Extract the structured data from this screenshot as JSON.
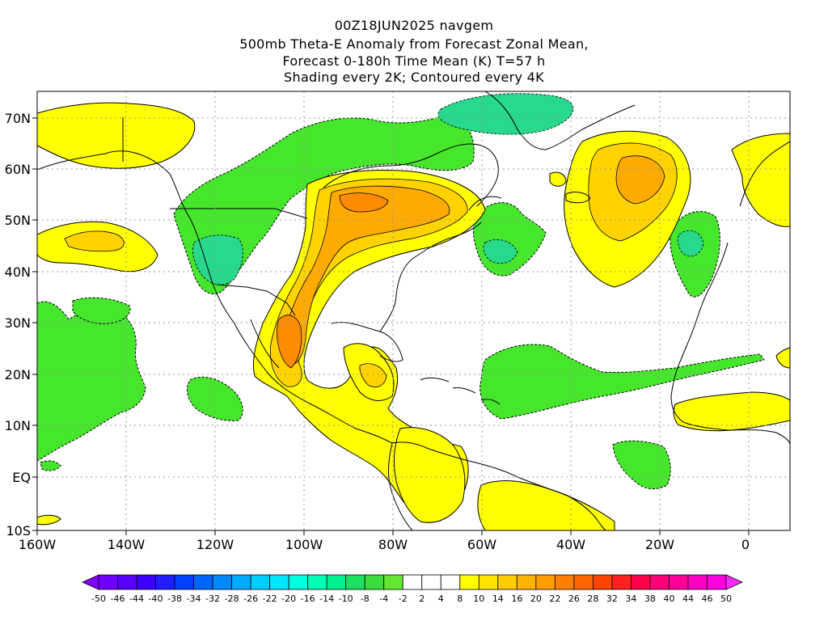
{
  "titles": {
    "line1": "00Z18JUN2025 navgem",
    "line2": "500mb Theta-E Anomaly from Forecast Zonal Mean,",
    "line3": "Forecast 0-180h Time Mean (K) T=57 h",
    "line4": "Shading every 2K; Contoured every 4K"
  },
  "lat_labels": [
    "70N",
    "60N",
    "50N",
    "40N",
    "30N",
    "20N",
    "10N",
    "EQ",
    "10S"
  ],
  "lon_labels": [
    "160W",
    "140W",
    "120W",
    "100W",
    "80W",
    "60W",
    "40W",
    "20W",
    "0"
  ],
  "colorbar": {
    "labels": [
      "-50",
      "-46",
      "-44",
      "-40",
      "-38",
      "-34",
      "-32",
      "-28",
      "-26",
      "-22",
      "-20",
      "-16",
      "-14",
      "-10",
      "-8",
      "-4",
      "-2",
      "2",
      "4",
      "8",
      "10",
      "14",
      "16",
      "20",
      "22",
      "26",
      "28",
      "32",
      "34",
      "38",
      "40",
      "44",
      "46",
      "50"
    ],
    "colors": [
      "#8000ff",
      "#7000ff",
      "#5a00ff",
      "#3c00ff",
      "#1e1eff",
      "#0040ff",
      "#0064ff",
      "#0088ff",
      "#00aaff",
      "#00ccff",
      "#00e6ff",
      "#00ffe0",
      "#00ffb4",
      "#00f090",
      "#1ee060",
      "#3cdc3c",
      "#64e632",
      "#ffffff",
      "#ffffff",
      "#ffffff",
      "#ffff00",
      "#ffe400",
      "#ffcc00",
      "#ffb400",
      "#ff9c00",
      "#ff8000",
      "#ff6400",
      "#ff4400",
      "#ff2020",
      "#ff0048",
      "#ff0078",
      "#ff0098",
      "#ff00c0",
      "#ff00e0",
      "#ff28ff"
    ]
  },
  "colors": {
    "green": "#46e62d",
    "light_green": "#3cdc50",
    "teal_green": "#28d88c",
    "yellow": "#ffff00",
    "gold": "#ffd200",
    "orange": "#ffaa00",
    "dark_orange": "#ff8c00",
    "land_outline": "#000000",
    "grid": "#999999"
  }
}
